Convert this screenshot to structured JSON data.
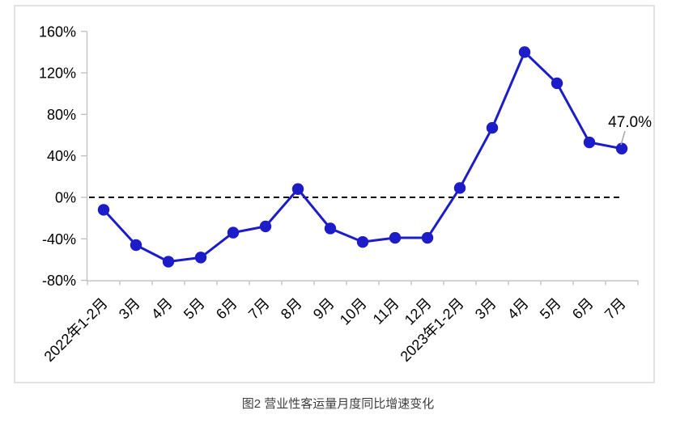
{
  "chart_data": {
    "type": "line",
    "title": "",
    "caption": "图2 营业性客运量月度同比增速变化",
    "categories": [
      "2022年1-2月",
      "3月",
      "4月",
      "5月",
      "6月",
      "7月",
      "8月",
      "9月",
      "10月",
      "11月",
      "12月",
      "2023年1-2月",
      "3月",
      "4月",
      "5月",
      "6月",
      "7月"
    ],
    "values": [
      -12,
      -46,
      -62,
      -58,
      -34,
      -28,
      8,
      -30,
      -43,
      -39,
      -39,
      9,
      67,
      140,
      110,
      53,
      47
    ],
    "last_point_annotation": "47.0%",
    "yticks": [
      160,
      120,
      80,
      40,
      0,
      -40,
      -80
    ],
    "ytick_labels": [
      "160%",
      "120%",
      "80%",
      "40%",
      "0%",
      "-40%",
      "-80%"
    ],
    "ylim": [
      -80,
      160
    ],
    "xlabel": "",
    "ylabel": "",
    "zero_line_style": "dashed",
    "grid": "off",
    "legend": "none",
    "colors": {
      "series": "#1c1cc8",
      "axis": "#bfbfbf",
      "frame": "#d9d9d9",
      "zero_line": "#000000",
      "leader_line": "#a6a6a6",
      "caption_text": "#3f3f3f"
    }
  }
}
